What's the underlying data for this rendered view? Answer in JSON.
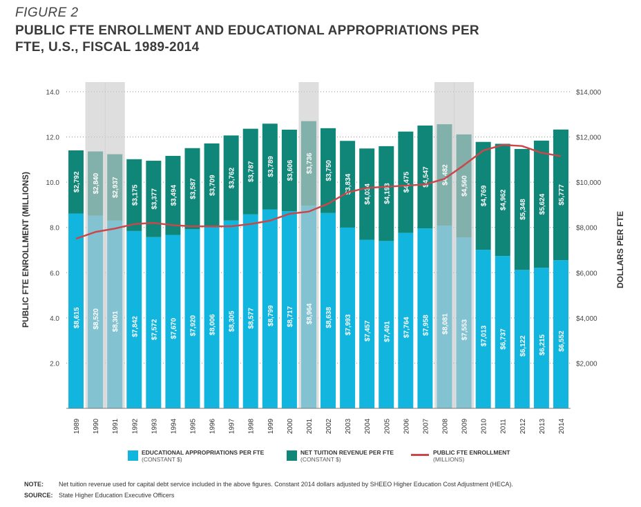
{
  "figure_label": "FIGURE 2",
  "title": "PUBLIC FTE ENROLLMENT AND EDUCATIONAL APPROPRIATIONS PER FTE, U.S., FISCAL 1989-2014",
  "colors": {
    "appropriations": "#11b5de",
    "tuition": "#0f8677",
    "enrollment": "#c9474a",
    "recession": "#c9c9c9"
  },
  "chart_data": {
    "type": "bar",
    "stacked": true,
    "categories": [
      "1989",
      "1990",
      "1991",
      "1992",
      "1993",
      "1994",
      "1995",
      "1996",
      "1997",
      "1998",
      "1999",
      "2000",
      "2001",
      "2002",
      "2003",
      "2004",
      "2005",
      "2006",
      "2007",
      "2008",
      "2009",
      "2010",
      "2011",
      "2012",
      "2013",
      "2014"
    ],
    "series": [
      {
        "name": "EDUCATIONAL APPROPRIATIONS PER FTE",
        "values": [
          8615,
          8520,
          8301,
          7842,
          7572,
          7670,
          7920,
          8006,
          8305,
          8577,
          8799,
          8717,
          8964,
          8638,
          7993,
          7457,
          7401,
          7764,
          7958,
          8081,
          7553,
          7013,
          6737,
          6122,
          6215,
          6552
        ],
        "labels": [
          "$8,615",
          "$8,520",
          "$8,301",
          "$7,842",
          "$7,572",
          "$7,670",
          "$7,920",
          "$8,006",
          "$8,305",
          "$8,577",
          "$8,799",
          "$8,717",
          "$8,964",
          "$8,638",
          "$7,993",
          "$7,457",
          "$7,401",
          "$7,764",
          "$7,958",
          "$8,081",
          "$7,553",
          "$7,013",
          "$6,737",
          "$6,122",
          "$6,215",
          "$6,552"
        ]
      },
      {
        "name": "NET TUITION REVENUE PER FTE",
        "values": [
          2792,
          2840,
          2937,
          3175,
          3377,
          3494,
          3587,
          3709,
          3762,
          3787,
          3789,
          3606,
          3736,
          3750,
          3834,
          4034,
          4193,
          4475,
          4547,
          4482,
          4560,
          4769,
          4962,
          5348,
          5624,
          5777
        ],
        "labels": [
          "$2,792",
          "$2,840",
          "$2,937",
          "$3,175",
          "$3,377",
          "$3,494",
          "$3,587",
          "$3,709",
          "$3,762",
          "$3,787",
          "$3,789",
          "$3,606",
          "$3,736",
          "$3,750",
          "$3,834",
          "$4,034",
          "$4,193",
          "$4,475",
          "$4,547",
          "$4,482",
          "$4,560",
          "$4,769",
          "$4,962",
          "$5,348",
          "$5,624",
          "$5,777"
        ]
      }
    ],
    "line_series": {
      "name": "PUBLIC FTE ENROLLMENT",
      "values": [
        7.5,
        7.8,
        7.95,
        8.15,
        8.2,
        8.1,
        8.05,
        8.05,
        8.05,
        8.15,
        8.3,
        8.6,
        8.7,
        9.05,
        9.55,
        9.75,
        9.8,
        9.85,
        9.9,
        10.15,
        10.75,
        11.4,
        11.65,
        11.6,
        11.3,
        11.15
      ]
    },
    "recession_years": [
      "1990",
      "1991",
      "2001",
      "2008",
      "2009"
    ],
    "ylabel": "PUBLIC FTE ENROLLMENT (MILLIONS)",
    "y2label": "DOLLARS PER FTE",
    "ylim": [
      0,
      14
    ],
    "y2lim": [
      0,
      14000
    ],
    "yticks": [
      "",
      "2.0",
      "4.0",
      "6.0",
      "8.0",
      "10.0",
      "12.0",
      "14.0"
    ],
    "y2ticks": [
      "",
      "$2,000",
      "$4,000",
      "$6,000",
      "$8,000",
      "$10,000",
      "$12,000",
      "$14,000"
    ],
    "gridlines": "dotted"
  },
  "legend": [
    {
      "title": "EDUCATIONAL APPROPRIATIONS PER FTE",
      "sub": "(CONSTANT $)"
    },
    {
      "title": "NET TUITION REVENUE PER FTE",
      "sub": "(CONSTANT $)"
    },
    {
      "title": "PUBLIC FTE ENROLLMENT",
      "sub": "(MILLIONS)"
    }
  ],
  "note_label": "NOTE:",
  "note_text": "Net tuition revenue used for capital debt service included in the above figures. Constant 2014 dollars adjusted by SHEEO Higher Education Cost Adjustment (HECA).",
  "source_label": "SOURCE:",
  "source_text": "State Higher Education Executive Officers"
}
